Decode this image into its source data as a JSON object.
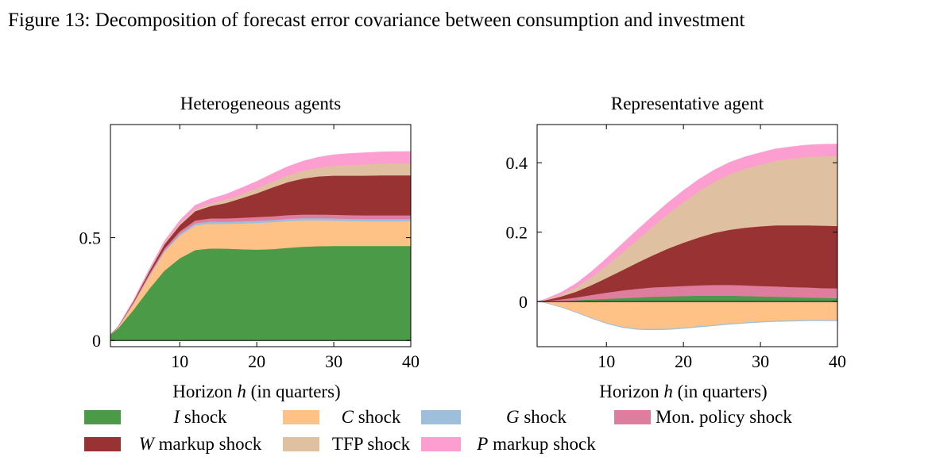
{
  "figure_title": "Figure 13: Decomposition of forecast error covariance between consumption and investment",
  "legend": {
    "entries": [
      {
        "key": "I",
        "italic": "I",
        "rest": " shock",
        "color": "#4a9a48"
      },
      {
        "key": "C",
        "italic": "C",
        "rest": " shock",
        "color": "#fec287"
      },
      {
        "key": "G",
        "italic": "G",
        "rest": " shock",
        "color": "#9ebfdc"
      },
      {
        "key": "MP",
        "italic": "",
        "rest": "Mon. policy shock",
        "color": "#de7d9e"
      },
      {
        "key": "W",
        "italic": "W",
        "rest": " markup shock",
        "color": "#993333"
      },
      {
        "key": "TFP",
        "italic": "",
        "rest": "TFP shock",
        "color": "#dfc0a0"
      },
      {
        "key": "P",
        "italic": "P",
        "rest": " markup shock",
        "color": "#fd9ed0"
      }
    ]
  },
  "chart_data": [
    {
      "type": "area",
      "stacked": true,
      "title": "Heterogeneous agents",
      "xlabel": "Horizon h (in quarters)",
      "ylabel": "",
      "xlim": [
        1,
        40
      ],
      "ylim": [
        -0.03,
        1.05
      ],
      "xticks": [
        10,
        20,
        30,
        40
      ],
      "yticks": [
        0,
        0.5
      ],
      "ytick_labels": [
        "0",
        "0.5"
      ],
      "grid": false,
      "x": [
        1,
        2,
        4,
        6,
        8,
        10,
        12,
        14,
        16,
        18,
        20,
        22,
        24,
        26,
        28,
        30,
        32,
        34,
        36,
        38,
        40
      ],
      "series": [
        {
          "name": "I shock",
          "key": "I",
          "values": [
            0.03,
            0.06,
            0.15,
            0.25,
            0.34,
            0.4,
            0.44,
            0.448,
            0.447,
            0.444,
            0.442,
            0.445,
            0.451,
            0.456,
            0.459,
            0.46,
            0.46,
            0.46,
            0.46,
            0.46,
            0.46
          ]
        },
        {
          "name": "C shock",
          "key": "C",
          "values": [
            0.0,
            0.005,
            0.03,
            0.06,
            0.09,
            0.11,
            0.12,
            0.12,
            0.12,
            0.125,
            0.13,
            0.13,
            0.13,
            0.128,
            0.125,
            0.123,
            0.121,
            0.12,
            0.12,
            0.12,
            0.12
          ]
        },
        {
          "name": "G shock",
          "key": "G",
          "values": [
            0.0,
            0.001,
            0.003,
            0.005,
            0.007,
            0.009,
            0.01,
            0.011,
            0.011,
            0.011,
            0.011,
            0.011,
            0.011,
            0.011,
            0.011,
            0.011,
            0.011,
            0.011,
            0.011,
            0.011,
            0.011
          ]
        },
        {
          "name": "Mon. policy shock",
          "key": "MP",
          "values": [
            0.0,
            0.001,
            0.004,
            0.007,
            0.01,
            0.012,
            0.014,
            0.015,
            0.016,
            0.017,
            0.018,
            0.018,
            0.018,
            0.018,
            0.018,
            0.018,
            0.018,
            0.018,
            0.018,
            0.018,
            0.018
          ]
        },
        {
          "name": "W markup shock",
          "key": "W",
          "values": [
            0.0,
            0.001,
            0.005,
            0.012,
            0.02,
            0.03,
            0.045,
            0.06,
            0.075,
            0.095,
            0.115,
            0.14,
            0.16,
            0.175,
            0.185,
            0.19,
            0.192,
            0.193,
            0.194,
            0.194,
            0.194
          ]
        },
        {
          "name": "TFP shock",
          "key": "TFP",
          "values": [
            0.0,
            0.0,
            0.002,
            0.004,
            0.006,
            0.008,
            0.01,
            0.013,
            0.016,
            0.02,
            0.024,
            0.028,
            0.033,
            0.038,
            0.043,
            0.048,
            0.052,
            0.055,
            0.057,
            0.058,
            0.058
          ]
        },
        {
          "name": "P markup shock",
          "key": "P",
          "values": [
            0.0,
            0.001,
            0.003,
            0.006,
            0.01,
            0.014,
            0.018,
            0.022,
            0.026,
            0.03,
            0.034,
            0.038,
            0.042,
            0.046,
            0.05,
            0.053,
            0.055,
            0.056,
            0.057,
            0.058,
            0.058
          ]
        }
      ]
    },
    {
      "type": "area",
      "stacked": true,
      "title": "Representative agent",
      "xlabel": "Horizon h (in quarters)",
      "ylabel": "",
      "xlim": [
        1,
        40
      ],
      "ylim": [
        -0.13,
        0.51
      ],
      "xticks": [
        10,
        20,
        30,
        40
      ],
      "yticks": [
        0,
        0.2,
        0.4
      ],
      "ytick_labels": [
        "0",
        "0.2",
        "0.4"
      ],
      "grid": false,
      "x": [
        1,
        2,
        4,
        6,
        8,
        10,
        12,
        14,
        16,
        18,
        20,
        22,
        24,
        26,
        28,
        30,
        32,
        34,
        36,
        38,
        40
      ],
      "series": [
        {
          "name": "I shock",
          "key": "I",
          "values": [
            0.0,
            0.0005,
            0.002,
            0.004,
            0.006,
            0.008,
            0.01,
            0.012,
            0.014,
            0.015,
            0.016,
            0.017,
            0.017,
            0.017,
            0.016,
            0.015,
            0.014,
            0.013,
            0.012,
            0.011,
            0.01
          ]
        },
        {
          "name": "C shock",
          "key": "C",
          "values": [
            0.0,
            -0.003,
            -0.015,
            -0.03,
            -0.047,
            -0.062,
            -0.073,
            -0.079,
            -0.08,
            -0.079,
            -0.076,
            -0.072,
            -0.068,
            -0.064,
            -0.061,
            -0.058,
            -0.056,
            -0.055,
            -0.054,
            -0.054,
            -0.054
          ]
        },
        {
          "name": "G shock",
          "key": "G",
          "values": [
            0.0,
            -0.0002,
            -0.0005,
            -0.0008,
            -0.001,
            -0.0012,
            -0.0014,
            -0.0015,
            -0.0016,
            -0.0016,
            -0.0016,
            -0.0016,
            -0.0016,
            -0.0016,
            -0.0016,
            -0.0016,
            -0.0016,
            -0.0016,
            -0.0016,
            -0.0016,
            -0.0016
          ]
        },
        {
          "name": "Mon. policy shock",
          "key": "MP",
          "values": [
            0.0,
            0.001,
            0.004,
            0.008,
            0.013,
            0.018,
            0.022,
            0.025,
            0.027,
            0.028,
            0.029,
            0.03,
            0.031,
            0.031,
            0.031,
            0.03,
            0.03,
            0.029,
            0.029,
            0.028,
            0.028
          ]
        },
        {
          "name": "W markup shock",
          "key": "W",
          "values": [
            0.0,
            0.002,
            0.008,
            0.016,
            0.028,
            0.042,
            0.058,
            0.075,
            0.092,
            0.11,
            0.125,
            0.138,
            0.15,
            0.159,
            0.166,
            0.172,
            0.176,
            0.178,
            0.179,
            0.18,
            0.18
          ]
        },
        {
          "name": "TFP shock",
          "key": "TFP",
          "values": [
            0.0,
            0.001,
            0.005,
            0.012,
            0.022,
            0.035,
            0.05,
            0.066,
            0.083,
            0.1,
            0.117,
            0.133,
            0.147,
            0.16,
            0.17,
            0.178,
            0.186,
            0.192,
            0.197,
            0.2,
            0.202
          ]
        },
        {
          "name": "P markup shock",
          "key": "P",
          "values": [
            0.0,
            0.002,
            0.006,
            0.011,
            0.016,
            0.021,
            0.025,
            0.028,
            0.03,
            0.032,
            0.033,
            0.034,
            0.034,
            0.034,
            0.034,
            0.034,
            0.034,
            0.034,
            0.034,
            0.034,
            0.034
          ]
        }
      ]
    }
  ]
}
